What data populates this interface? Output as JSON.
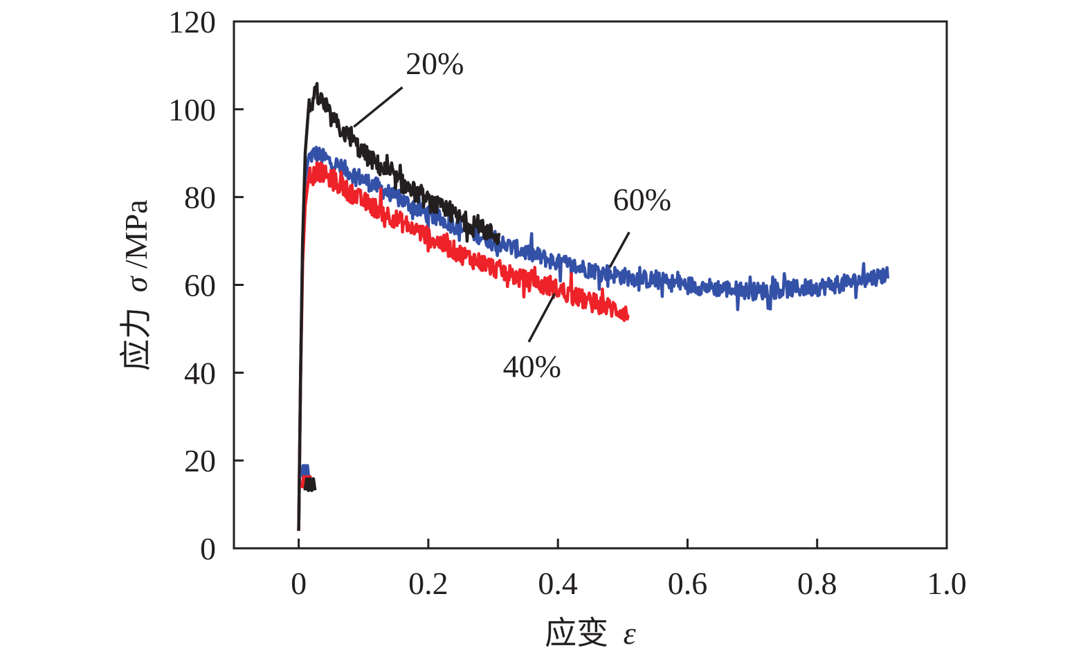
{
  "chart_data": {
    "type": "line",
    "title": "",
    "xlabel": "应变 ε",
    "xlabel_parts": {
      "cjk": "应变",
      "symbol": "ε"
    },
    "ylabel": "应力 σ/MPa",
    "ylabel_parts": {
      "cjk": "应力",
      "symbol": "σ",
      "unit": "/MPa"
    },
    "xlim": [
      -0.1,
      1.0
    ],
    "ylim": [
      0,
      120
    ],
    "xticks": [
      0,
      0.2,
      0.4,
      0.6,
      0.8,
      1.0
    ],
    "xtick_labels": [
      "0",
      "0.2",
      "0.4",
      "0.6",
      "0.8",
      "1.0"
    ],
    "yticks": [
      0,
      20,
      40,
      60,
      80,
      100,
      120
    ],
    "ytick_labels": [
      "0",
      "20",
      "40",
      "60",
      "80",
      "100",
      "120"
    ],
    "grid": false,
    "legend": "none",
    "series": [
      {
        "name": "20%",
        "color": "#231f20",
        "noise": 2.2,
        "points": [
          [
            0.0,
            4
          ],
          [
            0.003,
            40
          ],
          [
            0.006,
            70
          ],
          [
            0.01,
            90
          ],
          [
            0.015,
            100
          ],
          [
            0.025,
            103
          ],
          [
            0.035,
            102
          ],
          [
            0.05,
            98
          ],
          [
            0.075,
            94
          ],
          [
            0.1,
            90
          ],
          [
            0.15,
            84
          ],
          [
            0.2,
            79
          ],
          [
            0.25,
            75
          ],
          [
            0.3,
            71.5
          ],
          [
            0.31,
            71
          ]
        ]
      },
      {
        "name": "60%",
        "color": "#3451a8",
        "noise": 2.0,
        "points": [
          [
            0.0,
            4
          ],
          [
            0.003,
            40
          ],
          [
            0.006,
            70
          ],
          [
            0.01,
            84
          ],
          [
            0.015,
            89
          ],
          [
            0.025,
            90
          ],
          [
            0.05,
            88
          ],
          [
            0.1,
            84
          ],
          [
            0.15,
            80
          ],
          [
            0.2,
            76
          ],
          [
            0.3,
            70
          ],
          [
            0.4,
            65
          ],
          [
            0.5,
            62
          ],
          [
            0.6,
            60
          ],
          [
            0.7,
            58.5
          ],
          [
            0.8,
            59.5
          ],
          [
            0.85,
            60.5
          ],
          [
            0.91,
            62.5
          ]
        ]
      },
      {
        "name": "40%",
        "color": "#ee2229",
        "noise": 2.2,
        "points": [
          [
            0.0,
            4
          ],
          [
            0.003,
            40
          ],
          [
            0.006,
            65
          ],
          [
            0.01,
            78
          ],
          [
            0.015,
            84
          ],
          [
            0.03,
            86
          ],
          [
            0.05,
            84
          ],
          [
            0.1,
            79
          ],
          [
            0.15,
            75
          ],
          [
            0.2,
            71
          ],
          [
            0.25,
            67
          ],
          [
            0.3,
            64
          ],
          [
            0.35,
            61
          ],
          [
            0.4,
            59
          ],
          [
            0.45,
            56
          ],
          [
            0.5,
            54
          ],
          [
            0.51,
            53
          ]
        ]
      }
    ],
    "initial_blips": [
      {
        "series": "60%",
        "x": [
          0.005,
          0.015
        ],
        "y": 17.5
      },
      {
        "series": "40%",
        "x": [
          0.005,
          0.02
        ],
        "y": 15
      },
      {
        "series": "20%",
        "x": [
          0.01,
          0.025
        ],
        "y": 14.5
      }
    ],
    "annotations": [
      {
        "text": "20%",
        "series": "20%",
        "pointer_to": [
          0.085,
          96
        ],
        "pointer_from": [
          0.16,
          105
        ],
        "label_at": [
          0.21,
          108
        ]
      },
      {
        "text": "60%",
        "series": "60%",
        "pointer_to": [
          0.48,
          64
        ],
        "pointer_from": [
          0.51,
          72
        ],
        "label_at": [
          0.53,
          77
        ]
      },
      {
        "text": "40%",
        "series": "40%",
        "pointer_to": [
          0.395,
          58
        ],
        "pointer_from": [
          0.355,
          47
        ],
        "label_at": [
          0.36,
          39
        ]
      }
    ]
  }
}
